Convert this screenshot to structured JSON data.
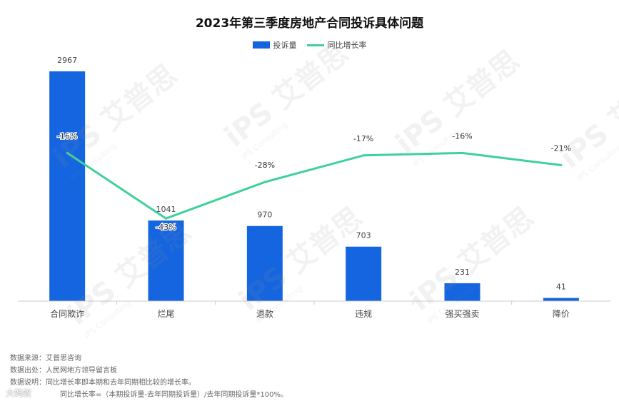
{
  "title": "2023年第三季度房地产合同投诉具体问题",
  "legend": {
    "bar_label": "投诉量",
    "line_label": "同比增长率"
  },
  "colors": {
    "bar": "#1565e0",
    "line": "#3fd19a"
  },
  "chart_data": {
    "type": "bar",
    "categories": [
      "合同欺诈",
      "烂尾",
      "退款",
      "违规",
      "强买强卖",
      "降价"
    ],
    "series": [
      {
        "name": "投诉量",
        "type": "bar",
        "values": [
          2967,
          1041,
          970,
          703,
          231,
          41
        ],
        "labels": [
          "2967",
          "1041",
          "970",
          "703",
          "231",
          "41"
        ]
      },
      {
        "name": "同比增长率",
        "type": "line",
        "values": [
          -16,
          -43,
          -28,
          -17,
          -16,
          -21
        ],
        "labels": [
          "-16%",
          "-43%",
          "-28%",
          "-17%",
          "-16%",
          "-21%"
        ]
      }
    ],
    "bar_ylim": [
      0,
      2967
    ],
    "line_ylim": [
      -50,
      0
    ],
    "grid": false,
    "legend_position": "top-center"
  },
  "footer": {
    "line1": "数据来源：艾普思咨询",
    "line2": "数据出处：人民网地方领导留言板",
    "line3": "数据说明：同比增长率即本期和去年同期相比较的增长率。",
    "line4": "同比增长率=（本期投诉量-去年同期投诉量）/去年同期投诉量*100%。"
  },
  "watermark": {
    "brand": "iPS 艾普思",
    "sub": "IPS Consulting"
  },
  "source_tag": "大蚂蚁"
}
